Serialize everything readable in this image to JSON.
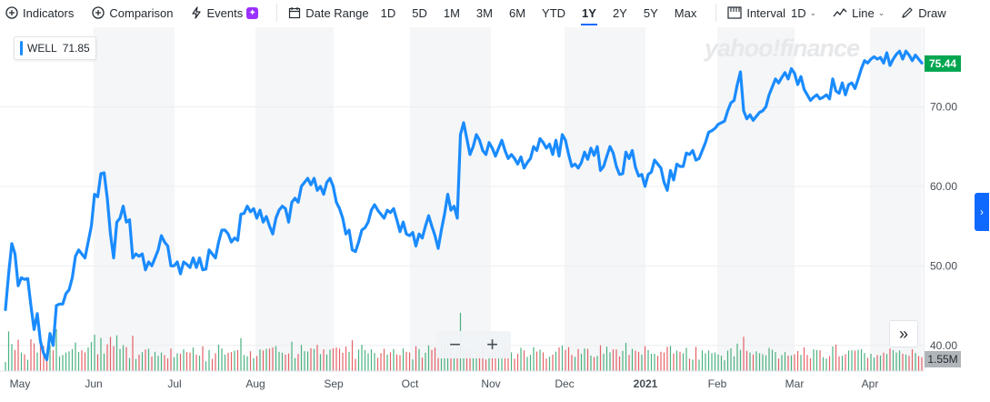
{
  "toolbar": {
    "indicators_label": "Indicators",
    "comparison_label": "Comparison",
    "events_label": "Events",
    "date_range_label": "Date Range",
    "ranges": [
      "1D",
      "5D",
      "1M",
      "3M",
      "6M",
      "YTD",
      "1Y",
      "2Y",
      "5Y",
      "Max"
    ],
    "active_range": "1Y",
    "interval_label": "Interval",
    "interval_value": "1D",
    "chart_type_label": "Line",
    "draw_label": "Draw"
  },
  "legend": {
    "symbol": "WELL",
    "value": "71.85"
  },
  "watermark": "yahoo!finance",
  "current_price_label": "75.44",
  "volume_label": "1.55M",
  "colors": {
    "line": "#1a8bff",
    "price_badge": "#00a650",
    "volume_up": "#2ca66a",
    "volume_down": "#e0474c",
    "volume_badge": "#b0b5ba"
  },
  "icons": [
    "plus-circle-icon",
    "lightning-icon",
    "calendar-icon",
    "interval-bars-icon",
    "line-chart-icon",
    "pencil-icon",
    "double-chevron-right-icon",
    "chevron-right-icon"
  ],
  "chart_data": {
    "type": "line",
    "title": "",
    "x_labels": [
      "May",
      "Jun",
      "Jul",
      "Aug",
      "Sep",
      "Oct",
      "Nov",
      "Dec",
      "2021",
      "Feb",
      "Mar",
      "Apr"
    ],
    "y_ticks": [
      "70.00",
      "60.00",
      "50.00",
      "40.00"
    ],
    "ylim": [
      37,
      80
    ],
    "grid": true,
    "series": [
      {
        "name": "WELL",
        "values": [
          44.5,
          49.0,
          52.8,
          51.5,
          47.5,
          48.5,
          48.3,
          48.4,
          45.0,
          42.0,
          44.0,
          40.5,
          39.0,
          38.2,
          41.5,
          40.0,
          45.0,
          45.2,
          45.2,
          46.5,
          47.0,
          48.5,
          51.2,
          52.0,
          51.5,
          51.0,
          53.0,
          55.0,
          59.0,
          58.7,
          61.6,
          61.7,
          58.5,
          54.0,
          51.0,
          55.5,
          56.0,
          57.5,
          55.5,
          55.8,
          51.0,
          51.5,
          51.2,
          51.5,
          49.5,
          50.5,
          50.0,
          51.0,
          52.0,
          53.8,
          53.0,
          52.5,
          50.0,
          50.0,
          50.5,
          49.0,
          50.5,
          50.2,
          49.8,
          51.0,
          49.8,
          51.0,
          49.5,
          49.6,
          52.0,
          51.5,
          51.0,
          53.0,
          54.5,
          54.5,
          54.0,
          53.0,
          53.5,
          53.2,
          56.5,
          56.6,
          57.5,
          56.8,
          57.2,
          56.0,
          57.0,
          55.5,
          56.2,
          55.0,
          54.0,
          56.0,
          57.0,
          57.5,
          57.2,
          55.5,
          58.0,
          58.5,
          58.0,
          60.0,
          60.5,
          61.0,
          60.2,
          61.0,
          59.5,
          60.0,
          59.0,
          60.5,
          61.0,
          60.0,
          58.0,
          57.2,
          56.0,
          54.0,
          54.5,
          52.0,
          51.8,
          53.0,
          54.5,
          54.8,
          55.5,
          57.0,
          57.7,
          57.0,
          56.5,
          56.0,
          57.0,
          56.7,
          57.2,
          55.8,
          54.3,
          55.5,
          54.0,
          53.8,
          54.2,
          52.5,
          54.0,
          53.5,
          55.0,
          56.3,
          55.0,
          53.8,
          52.2,
          54.5,
          56.5,
          59.0,
          57.0,
          57.5,
          56.0,
          66.5,
          68.0,
          66.0,
          64.0,
          65.0,
          66.5,
          65.8,
          64.5,
          64.0,
          65.5,
          64.8,
          63.8,
          64.8,
          65.8,
          64.5,
          63.5,
          64.0,
          63.5,
          62.8,
          63.7,
          62.3,
          63.0,
          63.5,
          65.0,
          64.5,
          66.0,
          65.5,
          64.8,
          65.3,
          64.0,
          65.8,
          63.8,
          66.5,
          65.8,
          64.0,
          62.5,
          62.8,
          62.3,
          63.0,
          64.3,
          63.4,
          64.8,
          63.9,
          65.0,
          62.0,
          62.5,
          63.8,
          65.0,
          64.2,
          62.5,
          61.5,
          61.6,
          64.3,
          63.5,
          64.5,
          62.4,
          61.3,
          61.5,
          60.0,
          61.5,
          61.8,
          63.3,
          62.8,
          62.3,
          60.5,
          59.5,
          62.0,
          60.8,
          62.8,
          62.5,
          62.5,
          64.2,
          64.0,
          64.5,
          63.3,
          63.5,
          64.5,
          65.5,
          66.8,
          67.0,
          67.3,
          67.8,
          68.0,
          68.2,
          69.5,
          70.5,
          70.8,
          72.8,
          74.4,
          69.5,
          68.5,
          69.0,
          68.3,
          68.8,
          69.3,
          69.5,
          70.0,
          71.5,
          72.5,
          73.5,
          73.0,
          73.7,
          74.3,
          73.5,
          74.8,
          74.2,
          72.8,
          73.8,
          72.2,
          71.5,
          70.8,
          71.2,
          71.5,
          71.0,
          71.2,
          71.5,
          71.0,
          73.5,
          72.0,
          71.7,
          73.0,
          71.5,
          72.8,
          73.0,
          72.3,
          73.5,
          74.8,
          75.8,
          75.5,
          76.0,
          76.3,
          76.0,
          76.2,
          75.5,
          76.8,
          75.2,
          76.0,
          76.6,
          77.0,
          76.0,
          77.0,
          76.5,
          75.8,
          76.5,
          76.0,
          75.5
        ]
      }
    ]
  }
}
